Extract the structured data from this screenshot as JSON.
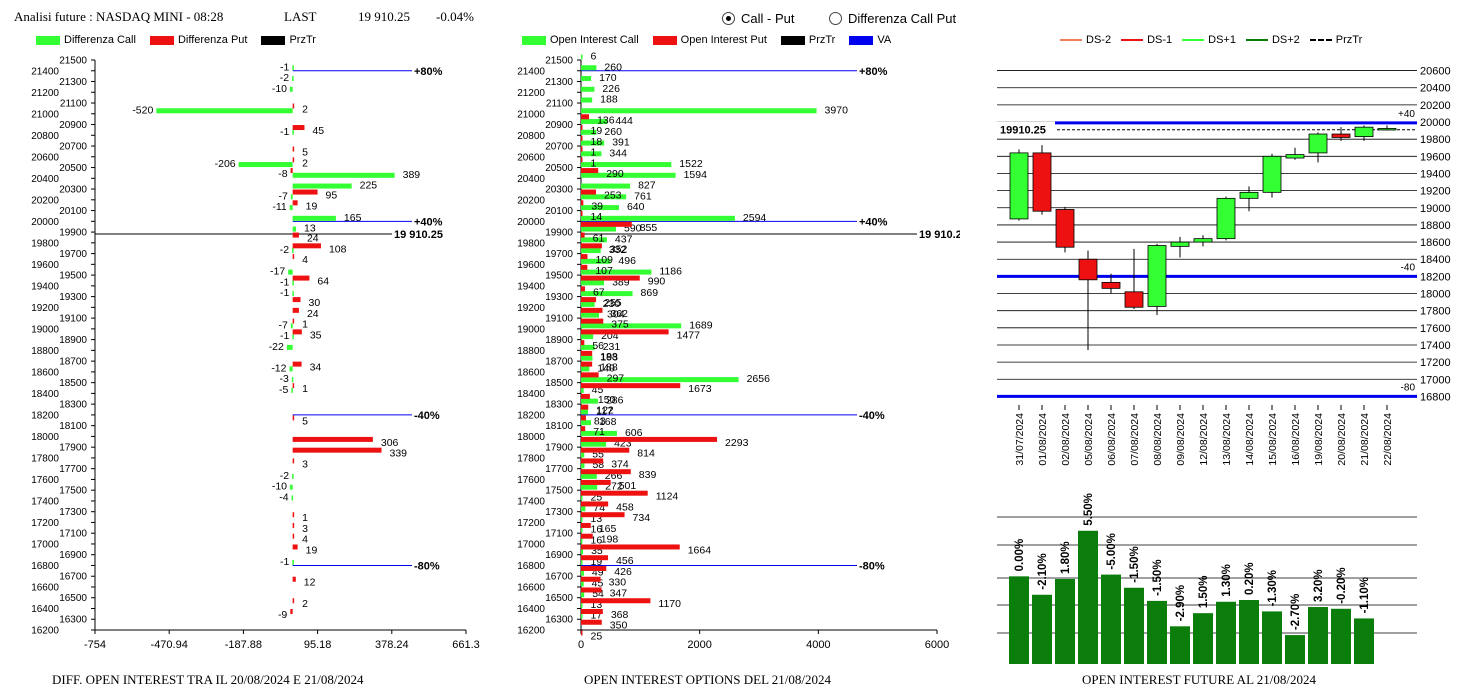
{
  "header": {
    "title": "Analisi future : NASDAQ MINI - 08:28",
    "last_label": "LAST",
    "last_value": "19 910.25",
    "change": "-0.04%"
  },
  "radio": {
    "option1": "Call - Put",
    "option2": "Differenza Call Put",
    "selected": "Call - Put"
  },
  "colors": {
    "green": "#33ff33",
    "red": "#ee1111",
    "blue": "#0000ee",
    "dark_green": "#0b7d0b",
    "black": "#000000"
  },
  "legend1": {
    "a": "Differenza Call",
    "b": "Differenza Put",
    "c": "PrzTr"
  },
  "legend2": {
    "a": "Open Interest Call",
    "b": "Open Interest Put",
    "c": "PrzTr",
    "d": "VA"
  },
  "legend3": {
    "a": "DS-2",
    "b": "DS-1",
    "c": "DS+1",
    "d": "DS+2",
    "e": "PrzTr"
  },
  "captions": {
    "c1": "DIFF. OPEN INTEREST TRA IL 20/08/2024 E 21/08/2024",
    "c2": "OPEN INTEREST OPTIONS DEL 21/08/2024",
    "c3": "OPEN INTEREST FUTURE AL 21/08/2024"
  },
  "chart_data": [
    {
      "type": "bar",
      "title": "DIFF. OPEN INTEREST TRA IL 20/08/2024 E 21/08/2024",
      "orientation": "horizontal",
      "strike_ticks": [
        21500,
        21400,
        21300,
        21200,
        21100,
        21000,
        20900,
        20800,
        20700,
        20600,
        20500,
        20400,
        20300,
        20200,
        20100,
        20000,
        19900,
        19800,
        19700,
        19600,
        19500,
        19400,
        19300,
        19200,
        19100,
        19000,
        18900,
        18800,
        18700,
        18600,
        18500,
        18400,
        18300,
        18200,
        18100,
        18000,
        17900,
        17800,
        17700,
        17600,
        17500,
        17400,
        17300,
        17200,
        17100,
        17000,
        16900,
        16800,
        16700,
        16600,
        16500,
        16400,
        16300,
        16200
      ],
      "x_ticks": [
        "-754",
        "-470.94",
        "-187.88",
        "95.18",
        "378.24",
        "661.3"
      ],
      "xlim": [
        -754,
        661.3
      ],
      "last_price": 19910.25,
      "last_label": "19 910.25",
      "levels": [
        {
          "price": 21400,
          "label": "+80%"
        },
        {
          "price": 20000,
          "label": "+40%"
        },
        {
          "price": 18200,
          "label": "-40%"
        },
        {
          "price": 16800,
          "label": "-80%"
        }
      ],
      "series": [
        {
          "name": "Differenza Call",
          "points": [
            [
              21400,
              -1
            ],
            [
              21300,
              -2
            ],
            [
              21200,
              -10
            ],
            [
              21000,
              -520
            ],
            [
              20800,
              -1
            ],
            [
              20500,
              -206
            ],
            [
              20400,
              389
            ],
            [
              20300,
              225
            ],
            [
              20200,
              -7
            ],
            [
              20100,
              -11
            ],
            [
              20000,
              165
            ],
            [
              19900,
              13
            ],
            [
              19700,
              -2
            ],
            [
              19500,
              -17
            ],
            [
              19400,
              -1
            ],
            [
              19300,
              -1
            ],
            [
              19000,
              -7
            ],
            [
              18900,
              -1
            ],
            [
              18800,
              -22
            ],
            [
              18600,
              -12
            ],
            [
              18500,
              -3
            ],
            [
              18400,
              -5
            ],
            [
              17600,
              -2
            ],
            [
              17500,
              -10
            ],
            [
              17400,
              -4
            ],
            [
              16800,
              -1
            ]
          ]
        },
        {
          "name": "Differenza Put",
          "points": [
            [
              21100,
              2
            ],
            [
              20900,
              45
            ],
            [
              20700,
              5
            ],
            [
              20600,
              2
            ],
            [
              20500,
              -8
            ],
            [
              20300,
              95
            ],
            [
              20200,
              19
            ],
            [
              19900,
              24
            ],
            [
              19800,
              108
            ],
            [
              19700,
              4
            ],
            [
              19500,
              64
            ],
            [
              19300,
              30
            ],
            [
              19200,
              24
            ],
            [
              19100,
              1
            ],
            [
              19000,
              35
            ],
            [
              18700,
              34
            ],
            [
              18500,
              1
            ],
            [
              18200,
              5
            ],
            [
              18000,
              306
            ],
            [
              17900,
              339
            ],
            [
              17800,
              3
            ],
            [
              17300,
              1
            ],
            [
              17200,
              3
            ],
            [
              17100,
              4
            ],
            [
              17000,
              19
            ],
            [
              16700,
              12
            ],
            [
              16500,
              2
            ],
            [
              16400,
              -9
            ]
          ]
        }
      ]
    },
    {
      "type": "bar",
      "title": "OPEN INTEREST OPTIONS DEL 21/08/2024",
      "orientation": "horizontal",
      "strike_ticks": [
        21500,
        21400,
        21300,
        21200,
        21100,
        21000,
        20900,
        20800,
        20700,
        20600,
        20500,
        20400,
        20300,
        20200,
        20100,
        20000,
        19900,
        19800,
        19700,
        19600,
        19500,
        19400,
        19300,
        19200,
        19100,
        19000,
        18900,
        18800,
        18700,
        18600,
        18500,
        18400,
        18300,
        18200,
        18100,
        18000,
        17900,
        17800,
        17700,
        17600,
        17500,
        17400,
        17300,
        17200,
        17100,
        17000,
        16900,
        16800,
        16700,
        16600,
        16500,
        16400,
        16300,
        16200
      ],
      "x_ticks": [
        "0",
        "2000",
        "4000",
        "6000"
      ],
      "xlim": [
        0,
        6000
      ],
      "last_label": "19 910.25",
      "levels": [
        {
          "price": 21400,
          "label": "+80%"
        },
        {
          "price": 20000,
          "label": "+40%"
        },
        {
          "price": 18200,
          "label": "-40%"
        },
        {
          "price": 16800,
          "label": "-80%"
        }
      ],
      "series": [
        {
          "name": "Open Interest Call",
          "points": [
            [
              21500,
              6
            ],
            [
              21400,
              260
            ],
            [
              21300,
              170
            ],
            [
              21200,
              226
            ],
            [
              21100,
              188
            ],
            [
              21000,
              3970
            ],
            [
              20900,
              444
            ],
            [
              20800,
              260
            ],
            [
              20700,
              391
            ],
            [
              20600,
              344
            ],
            [
              20500,
              1522
            ],
            [
              20400,
              1594
            ],
            [
              20300,
              827
            ],
            [
              20200,
              761
            ],
            [
              20100,
              640
            ],
            [
              20000,
              2594
            ],
            [
              19900,
              590
            ],
            [
              19800,
              437
            ],
            [
              19700,
              332
            ],
            [
              19600,
              496
            ],
            [
              19500,
              1186
            ],
            [
              19400,
              389
            ],
            [
              19300,
              869
            ],
            [
              19200,
              230
            ],
            [
              19100,
              304
            ],
            [
              19000,
              1689
            ],
            [
              18900,
              204
            ],
            [
              18800,
              231
            ],
            [
              18700,
              193
            ],
            [
              18600,
              140
            ],
            [
              18500,
              2656
            ],
            [
              18400,
              45
            ],
            [
              18300,
              286
            ],
            [
              18200,
              117
            ],
            [
              18100,
              168
            ],
            [
              18000,
              606
            ],
            [
              17900,
              423
            ],
            [
              17800,
              55
            ],
            [
              17700,
              58
            ],
            [
              17600,
              266
            ],
            [
              17500,
              272
            ],
            [
              17400,
              25
            ],
            [
              17300,
              74
            ],
            [
              17200,
              13
            ],
            [
              17100,
              16
            ],
            [
              17000,
              16
            ],
            [
              16900,
              35
            ],
            [
              16800,
              19
            ],
            [
              16700,
              49
            ],
            [
              16600,
              45
            ],
            [
              16500,
              54
            ],
            [
              16400,
              13
            ],
            [
              16300,
              17
            ]
          ]
        },
        {
          "name": "Open Interest Put",
          "points": [
            [
              21000,
              136
            ],
            [
              20900,
              19
            ],
            [
              20800,
              18
            ],
            [
              20700,
              1
            ],
            [
              20600,
              1
            ],
            [
              20500,
              290
            ],
            [
              20300,
              253
            ],
            [
              20200,
              39
            ],
            [
              20100,
              14
            ],
            [
              20000,
              855
            ],
            [
              19900,
              61
            ],
            [
              19800,
              352
            ],
            [
              19700,
              109
            ],
            [
              19600,
              107
            ],
            [
              19500,
              990
            ],
            [
              19400,
              67
            ],
            [
              19300,
              255
            ],
            [
              19200,
              362
            ],
            [
              19100,
              375
            ],
            [
              19000,
              1477
            ],
            [
              18900,
              56
            ],
            [
              18800,
              188
            ],
            [
              18700,
              188
            ],
            [
              18600,
              297
            ],
            [
              18500,
              1673
            ],
            [
              18400,
              150
            ],
            [
              18300,
              122
            ],
            [
              18200,
              83
            ],
            [
              18100,
              71
            ],
            [
              18000,
              2293
            ],
            [
              17900,
              814
            ],
            [
              17800,
              374
            ],
            [
              17700,
              839
            ],
            [
              17600,
              501
            ],
            [
              17500,
              1124
            ],
            [
              17400,
              458
            ],
            [
              17300,
              734
            ],
            [
              17200,
              165
            ],
            [
              17100,
              198
            ],
            [
              17000,
              1664
            ],
            [
              16900,
              456
            ],
            [
              16800,
              426
            ],
            [
              16700,
              330
            ],
            [
              16600,
              347
            ],
            [
              16500,
              1170
            ],
            [
              16400,
              368
            ],
            [
              16300,
              350
            ],
            [
              16200,
              25
            ]
          ]
        }
      ]
    },
    {
      "type": "candlestick",
      "title": "OPEN INTEREST FUTURE AL 21/08/2024",
      "dates": [
        "31/07/2024",
        "01/08/2024",
        "02/08/2024",
        "05/08/2024",
        "06/08/2024",
        "07/08/2024",
        "08/08/2024",
        "09/08/2024",
        "12/08/2024",
        "13/08/2024",
        "14/08/2024",
        "15/08/2024",
        "16/08/2024",
        "19/08/2024",
        "20/08/2024",
        "21/08/2024",
        "22/08/2024"
      ],
      "y_ticks": [
        20600,
        20400,
        20200,
        20000,
        19800,
        19600,
        19400,
        19200,
        19000,
        18800,
        18600,
        18400,
        18200,
        18000,
        17800,
        17600,
        17400,
        17200,
        17000,
        16800
      ],
      "ylim": [
        16700,
        20700
      ],
      "last_price_label": "19910.25",
      "last_price": 19910.25,
      "bands": [
        {
          "label": "+40",
          "price": 19990
        },
        {
          "label": "-40",
          "price": 18200
        },
        {
          "label": "-80",
          "price": 16800
        }
      ],
      "candles": [
        {
          "open": 18870,
          "close": 19640,
          "high": 19680,
          "low": 18850,
          "color": "green"
        },
        {
          "open": 19640,
          "close": 18960,
          "high": 19730,
          "low": 18920,
          "color": "red"
        },
        {
          "open": 18980,
          "close": 18540,
          "high": 19010,
          "low": 18480,
          "color": "red"
        },
        {
          "open": 18400,
          "close": 18160,
          "high": 18500,
          "low": 17340,
          "color": "red"
        },
        {
          "open": 18130,
          "close": 18060,
          "high": 18230,
          "low": 18000,
          "color": "red"
        },
        {
          "open": 18020,
          "close": 17840,
          "high": 18520,
          "low": 17820,
          "color": "red"
        },
        {
          "open": 17850,
          "close": 18560,
          "high": 18580,
          "low": 17750,
          "color": "green"
        },
        {
          "open": 18550,
          "close": 18600,
          "high": 18660,
          "low": 18420,
          "color": "green"
        },
        {
          "open": 18600,
          "close": 18640,
          "high": 18680,
          "low": 18550,
          "color": "green"
        },
        {
          "open": 18640,
          "close": 19110,
          "high": 19130,
          "low": 18620,
          "color": "green"
        },
        {
          "open": 19110,
          "close": 19180,
          "high": 19250,
          "low": 18960,
          "color": "green"
        },
        {
          "open": 19180,
          "close": 19600,
          "high": 19630,
          "low": 19120,
          "color": "green"
        },
        {
          "open": 19580,
          "close": 19620,
          "high": 19700,
          "low": 19560,
          "color": "green"
        },
        {
          "open": 19640,
          "close": 19860,
          "high": 19880,
          "low": 19530,
          "color": "green"
        },
        {
          "open": 19860,
          "close": 19820,
          "high": 19940,
          "low": 19780,
          "color": "red"
        },
        {
          "open": 19830,
          "close": 19940,
          "high": 19960,
          "low": 19780,
          "color": "green"
        },
        {
          "open": 19920,
          "close": 19925,
          "high": 19960,
          "low": 19900,
          "color": "green"
        }
      ],
      "oi_changes": [
        "0.00%",
        "-2.10%",
        "1.80%",
        "5.50%",
        "-5.00%",
        "-1.50%",
        "-1.50%",
        "-2.90%",
        "1.50%",
        "1.30%",
        "0.20%",
        "-1.30%",
        "-2.70%",
        "3.20%",
        "-0.20%",
        "-1.10%"
      ],
      "oi_values": [
        100.0,
        97.9,
        99.7,
        105.2,
        100.2,
        98.7,
        97.2,
        94.3,
        95.8,
        97.1,
        97.3,
        96.0,
        93.3,
        96.5,
        96.3,
        95.2
      ]
    }
  ]
}
